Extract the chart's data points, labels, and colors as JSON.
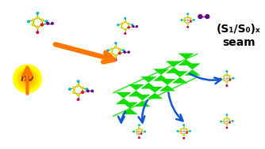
{
  "bg_color": "#ffffff",
  "title_text": "(S₁/S₀)ₓ\nseam",
  "hv_text": "hν",
  "fig_width": 3.34,
  "fig_height": 1.89,
  "dpi": 100,
  "orange_color": "#FF7700",
  "green_color": "#11DD00",
  "blue_arrow_color": "#1155CC",
  "atom_yellow": "#DDDD00",
  "atom_cyan": "#00BBBB",
  "atom_red": "#DD2200",
  "atom_magenta": "#CC0055",
  "atom_purple": "#660088",
  "title_fontsize": 10,
  "hv_fontsize": 9,
  "sun_colors": [
    "#FFFF00",
    "#FFE800",
    "#FFD000",
    "#FFAA00"
  ],
  "sun_radii": [
    18,
    14,
    11,
    7
  ]
}
